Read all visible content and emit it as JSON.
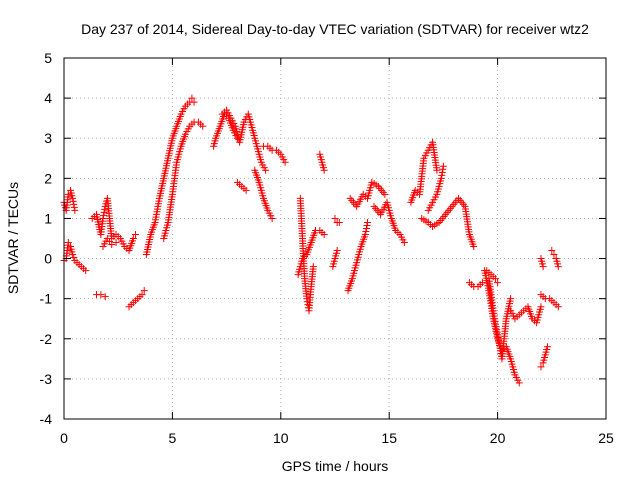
{
  "chart_data": {
    "type": "scatter",
    "title": "Day 237 of 2014, Sidereal Day-to-day VTEC variation (SDTVAR) for receiver wtz2",
    "xlabel": "GPS time / hours",
    "ylabel": "SDTVAR / TECUs",
    "xlim": [
      0,
      25
    ],
    "ylim": [
      -4,
      5
    ],
    "xticks": [
      "0",
      "5",
      "10",
      "15",
      "20",
      "25"
    ],
    "yticks": [
      "-4",
      "-3",
      "-2",
      "-1",
      "0",
      "1",
      "2",
      "3",
      "4",
      "5"
    ],
    "grid": true,
    "marker": "+",
    "color": "#ff0000",
    "segments": [
      {
        "x": [
          0.0,
          0.1,
          0.2,
          0.3,
          0.4,
          0.5
        ],
        "y": [
          1.4,
          1.2,
          1.6,
          1.7,
          1.5,
          1.2
        ]
      },
      {
        "x": [
          0.0,
          0.1,
          0.2,
          0.3,
          0.4,
          0.5,
          0.6,
          0.8,
          1.0
        ],
        "y": [
          -0.05,
          0.0,
          0.4,
          0.3,
          0.1,
          -0.05,
          -0.1,
          -0.2,
          -0.3
        ]
      },
      {
        "x": [
          1.3,
          1.5,
          1.7,
          1.8,
          1.9,
          2.0,
          2.1,
          2.2,
          2.4,
          2.6,
          2.8,
          3.0,
          3.2,
          3.3
        ],
        "y": [
          1.0,
          1.1,
          0.6,
          1.0,
          1.3,
          1.5,
          1.0,
          0.5,
          0.6,
          0.5,
          0.3,
          0.2,
          0.5,
          0.6
        ]
      },
      {
        "x": [
          1.5,
          1.7,
          1.9
        ],
        "y": [
          -0.9,
          -0.9,
          -0.95
        ]
      },
      {
        "x": [
          1.8,
          2.0,
          2.2,
          2.4
        ],
        "y": [
          0.3,
          0.5,
          0.35,
          0.4
        ]
      },
      {
        "x": [
          3.0,
          3.2,
          3.4,
          3.6,
          3.7
        ],
        "y": [
          -1.2,
          -1.1,
          -1.0,
          -0.9,
          -0.8
        ]
      },
      {
        "x": [
          3.8,
          4.0,
          4.2,
          4.4,
          4.6,
          4.8,
          5.0,
          5.2,
          5.4,
          5.6,
          5.8,
          5.9,
          6.0
        ],
        "y": [
          0.1,
          0.6,
          0.9,
          1.5,
          2.0,
          2.5,
          3.0,
          3.3,
          3.6,
          3.8,
          3.9,
          4.0,
          3.9
        ]
      },
      {
        "x": [
          4.6,
          4.8,
          5.0,
          5.2,
          5.4,
          5.6,
          5.8,
          6.0,
          6.2,
          6.4
        ],
        "y": [
          0.5,
          0.9,
          1.6,
          2.4,
          2.8,
          3.1,
          3.3,
          3.4,
          3.4,
          3.3
        ]
      },
      {
        "x": [
          6.9,
          7.0,
          7.2,
          7.4,
          7.6,
          7.8,
          8.0
        ],
        "y": [
          2.8,
          3.0,
          3.3,
          3.6,
          3.5,
          3.2,
          3.0
        ]
      },
      {
        "x": [
          7.3,
          7.5,
          7.7,
          7.9,
          8.1,
          8.3,
          8.5,
          8.7,
          8.9,
          9.1,
          9.3
        ],
        "y": [
          3.6,
          3.7,
          3.5,
          3.3,
          2.9,
          3.4,
          3.6,
          3.2,
          2.8,
          2.4,
          2.2
        ]
      },
      {
        "x": [
          8.0,
          8.2,
          8.4
        ],
        "y": [
          1.9,
          1.8,
          1.7
        ]
      },
      {
        "x": [
          8.8,
          9.0,
          9.2,
          9.4,
          9.6
        ],
        "y": [
          2.2,
          1.9,
          1.5,
          1.2,
          1.0
        ]
      },
      {
        "x": [
          9.2,
          9.4,
          9.6,
          9.8,
          10.0,
          10.2
        ],
        "y": [
          2.8,
          2.8,
          2.7,
          2.7,
          2.6,
          2.4
        ]
      },
      {
        "x": [
          11.8,
          12.0
        ],
        "y": [
          2.6,
          2.2
        ]
      },
      {
        "x": [
          10.9,
          11.0,
          11.1,
          11.2,
          11.3,
          11.4,
          11.5
        ],
        "y": [
          1.5,
          0.5,
          -0.5,
          -1.0,
          -1.3,
          -0.7,
          -0.2
        ]
      },
      {
        "x": [
          10.8,
          11.0,
          11.2,
          11.4,
          11.6,
          11.8,
          12.0
        ],
        "y": [
          -0.4,
          0.0,
          0.1,
          0.4,
          0.7,
          0.7,
          0.6
        ]
      },
      {
        "x": [
          12.5,
          12.6,
          12.7
        ],
        "y": [
          1.0,
          0.9,
          0.9
        ]
      },
      {
        "x": [
          12.4,
          12.5,
          12.6
        ],
        "y": [
          -0.2,
          0.0,
          0.2
        ]
      },
      {
        "x": [
          13.1,
          13.3,
          13.5,
          13.7,
          13.9,
          14.0
        ],
        "y": [
          -0.8,
          -0.5,
          -0.1,
          0.3,
          0.6,
          0.9
        ]
      },
      {
        "x": [
          13.2,
          13.5,
          13.8,
          14.0,
          14.2,
          14.5,
          14.8
        ],
        "y": [
          1.5,
          1.3,
          1.6,
          1.5,
          1.9,
          1.8,
          1.6
        ]
      },
      {
        "x": [
          14.3,
          14.6,
          14.9,
          15.1,
          15.3,
          15.5,
          15.7
        ],
        "y": [
          1.3,
          1.1,
          1.4,
          1.0,
          0.7,
          0.6,
          0.4
        ]
      },
      {
        "x": [
          16.0,
          16.2,
          16.4,
          16.6,
          16.8,
          17.0,
          17.2
        ],
        "y": [
          1.4,
          1.7,
          1.6,
          2.5,
          2.7,
          2.9,
          2.2
        ]
      },
      {
        "x": [
          16.8,
          17.0,
          17.2,
          17.4,
          17.5
        ],
        "y": [
          1.2,
          1.4,
          1.6,
          2.0,
          2.3
        ]
      },
      {
        "x": [
          17.0,
          17.3,
          17.6,
          17.9,
          18.2,
          18.5,
          18.7,
          18.9
        ],
        "y": [
          0.8,
          0.9,
          1.1,
          1.3,
          1.5,
          1.3,
          0.6,
          0.3
        ]
      },
      {
        "x": [
          16.5,
          16.8,
          17.0
        ],
        "y": [
          1.0,
          0.9,
          0.8
        ]
      },
      {
        "x": [
          18.7,
          18.9,
          19.1,
          19.3
        ],
        "y": [
          -0.6,
          -0.7,
          -0.7,
          -0.6
        ]
      },
      {
        "x": [
          19.4,
          19.6,
          19.8,
          20.0,
          20.2,
          20.4,
          20.6,
          20.8,
          21.0
        ],
        "y": [
          -0.3,
          -0.8,
          -1.5,
          -2.0,
          -2.3,
          -2.2,
          -2.5,
          -2.9,
          -3.1
        ]
      },
      {
        "x": [
          19.6,
          19.8,
          20.0,
          20.2,
          20.4,
          20.6
        ],
        "y": [
          -0.5,
          -1.3,
          -1.9,
          -2.5,
          -1.5,
          -1.0
        ]
      },
      {
        "x": [
          19.5,
          19.7,
          19.9,
          20.0
        ],
        "y": [
          -0.3,
          -0.4,
          -0.5,
          -0.6
        ]
      },
      {
        "x": [
          20.6,
          20.8,
          21.0,
          21.2,
          21.4,
          21.6,
          21.8,
          22.0
        ],
        "y": [
          -1.3,
          -1.5,
          -1.4,
          -1.3,
          -1.2,
          -1.5,
          -1.6,
          -1.2
        ]
      },
      {
        "x": [
          22.0,
          22.2,
          22.4,
          22.6,
          22.8
        ],
        "y": [
          -0.9,
          -1.0,
          -1.0,
          -1.1,
          -1.2
        ]
      },
      {
        "x": [
          22.0,
          22.1
        ],
        "y": [
          0.0,
          -0.2
        ]
      },
      {
        "x": [
          22.5,
          22.6,
          22.7,
          22.8
        ],
        "y": [
          0.2,
          0.1,
          0.0,
          -0.2
        ]
      },
      {
        "x": [
          22.0,
          22.1,
          22.2,
          22.3
        ],
        "y": [
          -2.7,
          -2.6,
          -2.4,
          -2.2
        ]
      }
    ]
  }
}
